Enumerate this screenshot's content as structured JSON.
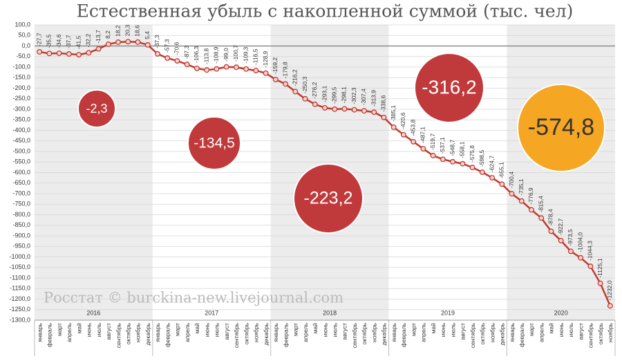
{
  "chart_data": {
    "type": "line",
    "title": "Естественная убыль с накопленной суммой (тыс. чел)",
    "watermark": "Росстат © burckina-new.livejournal.com",
    "groups": [
      {
        "name": "2016",
        "categories": [
          "январь",
          "февраль",
          "март",
          "апрель",
          "май",
          "июнь",
          "июль",
          "август",
          "сентябрь",
          "октябрь",
          "ноябрь",
          "декабрь"
        ]
      },
      {
        "name": "2017",
        "categories": [
          "январь",
          "февраль",
          "март",
          "апрель",
          "май",
          "июнь",
          "июль",
          "август",
          "сентябрь",
          "октябрь",
          "ноябрь",
          "декабрь"
        ]
      },
      {
        "name": "2018",
        "categories": [
          "январь",
          "февраль",
          "март",
          "апрель",
          "май",
          "июнь",
          "июль",
          "август",
          "сентябрь",
          "октябрь",
          "ноябрь",
          "декабрь"
        ]
      },
      {
        "name": "2019",
        "categories": [
          "январь",
          "февраль",
          "март",
          "апрель",
          "май",
          "июнь",
          "июль",
          "август",
          "сентябрь",
          "октябрь",
          "ноябрь",
          "декабрь"
        ]
      },
      {
        "name": "2020",
        "categories": [
          "январь",
          "февраль",
          "март",
          "апрель",
          "май",
          "июнь",
          "июль",
          "август",
          "сентябрь",
          "октябрь",
          "ноябрь"
        ]
      }
    ],
    "color": "#c0392b",
    "values": [
      -27.7,
      -35.5,
      -34.6,
      -37.7,
      -41.5,
      -32.2,
      -13.7,
      8.2,
      18.2,
      20.3,
      18.6,
      5.4,
      -37.3,
      -57.3,
      -70.6,
      -87.3,
      -106.3,
      -113.8,
      -108.9,
      -99.0,
      -100.7,
      -109.3,
      -116.5,
      -128.9,
      -159.2,
      -179.8,
      -216.2,
      -250.3,
      -276.2,
      -293.1,
      -299.5,
      -298.1,
      -302.3,
      -307.4,
      -313.9,
      -338.6,
      -385.1,
      -420.6,
      -453.8,
      -487.1,
      -519.7,
      -537.1,
      -548.7,
      -558.1,
      -575.8,
      -598.5,
      -624.7,
      -655.1,
      -700.4,
      -735.1,
      -776.9,
      -815.4,
      -878.4,
      -922.7,
      -973.5,
      -1004.0,
      -1044.3,
      -1125.1,
      -1232.0
    ],
    "value_labels": [
      "-27,7",
      "-35,5",
      "-34,6",
      "-37,7",
      "-41,5",
      "-32,2",
      "-13,7",
      "8,2",
      "18,2",
      "20,3",
      "18,6",
      "5,4",
      "-37,3",
      "-57,3",
      "-70,6",
      "-87,3",
      "-106,3",
      "-113,8",
      "-108,9",
      "-99,0",
      "-100,7",
      "-109,3",
      "-116,5",
      "-128,9",
      "-159,2",
      "-179,8",
      "-216,2",
      "-250,3",
      "-276,2",
      "-293,1",
      "-299,5",
      "-298,1",
      "-302,3",
      "-307,4",
      "-313,9",
      "-338,6",
      "-385,1",
      "-420,6",
      "-453,8",
      "-487,1",
      "-519,7",
      "-537,1",
      "-548,7",
      "-558,1",
      "-575,8",
      "-598,5",
      "-624,7",
      "-655,1",
      "-700,4",
      "-735,1",
      "-776,9",
      "-815,4",
      "-878,4",
      "-922,7",
      "-973,5",
      "-1004,0",
      "-1044,3",
      "-1125,1",
      "-1232,0"
    ],
    "ylim": [
      -1300,
      100
    ],
    "yticks": [
      {
        "value": 100,
        "label": "100,0"
      },
      {
        "value": 50,
        "label": "50,0"
      },
      {
        "value": 0,
        "label": "0,0"
      },
      {
        "value": -50,
        "label": "-50,0"
      },
      {
        "value": -100,
        "label": "-100,0"
      },
      {
        "value": -150,
        "label": "-150,0"
      },
      {
        "value": -200,
        "label": "-200,0"
      },
      {
        "value": -250,
        "label": "-250,0"
      },
      {
        "value": -300,
        "label": "-300,0"
      },
      {
        "value": -350,
        "label": "-350,0"
      },
      {
        "value": -400,
        "label": "-400,0"
      },
      {
        "value": -450,
        "label": "-450,0"
      },
      {
        "value": -500,
        "label": "-500,0"
      },
      {
        "value": -550,
        "label": "-550,0"
      },
      {
        "value": -600,
        "label": "-600,0"
      },
      {
        "value": -650,
        "label": "-650,0"
      },
      {
        "value": -700,
        "label": "-700,0"
      },
      {
        "value": -750,
        "label": "-750,0"
      },
      {
        "value": -800,
        "label": "-800,0"
      },
      {
        "value": -850,
        "label": "-850,0"
      },
      {
        "value": -900,
        "label": "-900,0"
      },
      {
        "value": -950,
        "label": "-950,0"
      },
      {
        "value": -1000,
        "label": "-1000,0"
      },
      {
        "value": -1050,
        "label": "-1050,0"
      },
      {
        "value": -1100,
        "label": "-1100,0"
      },
      {
        "value": -1150,
        "label": "-1150,0"
      },
      {
        "value": -1200,
        "label": "-1200,0"
      },
      {
        "value": -1250,
        "label": "-1250,0"
      },
      {
        "value": -1300,
        "label": "-1300,0"
      }
    ],
    "grid": true,
    "annotations": [
      {
        "label": "-2,3",
        "value": -2.3,
        "color": "#c0393b"
      },
      {
        "label": "-134,5",
        "value": -134.5,
        "color": "#c0393b"
      },
      {
        "label": "-223,2",
        "value": -223.2,
        "color": "#c0393b"
      },
      {
        "label": "-316,2",
        "value": -316.2,
        "color": "#c0393b"
      },
      {
        "label": "-574,8",
        "value": -574.8,
        "color": "#f5a623"
      }
    ]
  }
}
